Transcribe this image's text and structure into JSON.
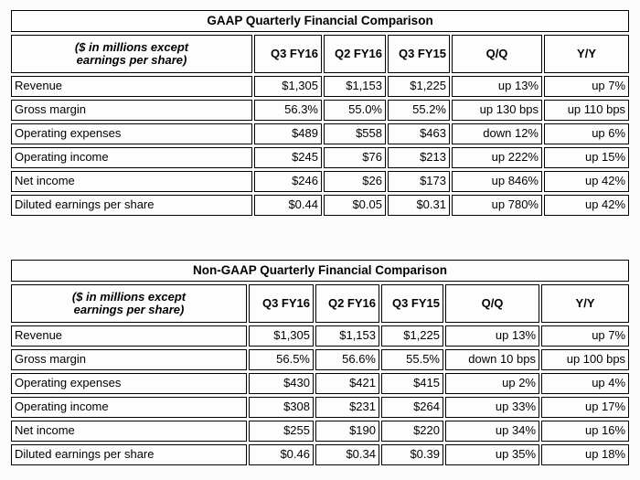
{
  "colors": {
    "border": "#000000",
    "text": "#000000",
    "cell_background": "#fdfdfd",
    "page_background": "#fcfcfc"
  },
  "tables": [
    {
      "title": "GAAP Quarterly Financial Comparison",
      "corner_header": {
        "line1": "($ in millions except",
        "line2": "earnings per share)"
      },
      "columns": [
        "Q3 FY16",
        "Q2 FY16",
        "Q3 FY15",
        "Q/Q",
        "Y/Y"
      ],
      "rows": [
        {
          "label": "Revenue",
          "values": [
            "$1,305",
            "$1,153",
            "$1,225",
            "up 13%",
            "up 7%"
          ]
        },
        {
          "label": "Gross margin",
          "values": [
            "56.3%",
            "55.0%",
            "55.2%",
            "up 130 bps",
            "up 110 bps"
          ]
        },
        {
          "label": "Operating expenses",
          "values": [
            "$489",
            "$558",
            "$463",
            "down 12%",
            "up 6%"
          ]
        },
        {
          "label": "Operating income",
          "values": [
            "$245",
            "$76",
            "$213",
            "up 222%",
            "up 15%"
          ]
        },
        {
          "label": "Net income",
          "values": [
            "$246",
            "$26",
            "$173",
            "up 846%",
            "up 42%"
          ]
        },
        {
          "label": "Diluted earnings per share",
          "values": [
            "$0.44",
            "$0.05",
            "$0.31",
            "up 780%",
            "up 42%"
          ]
        }
      ]
    },
    {
      "title": "Non-GAAP Quarterly Financial Comparison",
      "corner_header": {
        "line1": "($ in millions except",
        "line2": "earnings per share)"
      },
      "columns": [
        "Q3 FY16",
        "Q2 FY16",
        "Q3 FY15",
        "Q/Q",
        "Y/Y"
      ],
      "rows": [
        {
          "label": "Revenue",
          "values": [
            "$1,305",
            "$1,153",
            "$1,225",
            "up 13%",
            "up 7%"
          ]
        },
        {
          "label": "Gross margin",
          "values": [
            "56.5%",
            "56.6%",
            "55.5%",
            "down 10 bps",
            "up 100 bps"
          ]
        },
        {
          "label": "Operating expenses",
          "values": [
            "$430",
            "$421",
            "$415",
            "up 2%",
            "up 4%"
          ]
        },
        {
          "label": "Operating income",
          "values": [
            "$308",
            "$231",
            "$264",
            "up 33%",
            "up 17%"
          ]
        },
        {
          "label": "Net income",
          "values": [
            "$255",
            "$190",
            "$220",
            "up 34%",
            "up 16%"
          ]
        },
        {
          "label": "Diluted earnings per share",
          "values": [
            "$0.46",
            "$0.34",
            "$0.39",
            "up 35%",
            "up 18%"
          ]
        }
      ]
    }
  ]
}
